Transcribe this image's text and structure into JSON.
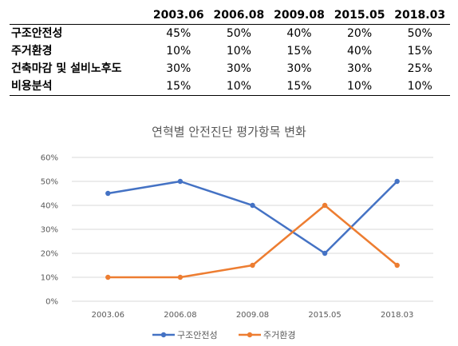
{
  "table": {
    "columns": [
      "2003.06",
      "2006.08",
      "2009.08",
      "2015.05",
      "2018.03"
    ],
    "rows": [
      {
        "label": "구조안전성",
        "values": [
          "45%",
          "50%",
          "40%",
          "20%",
          "50%"
        ]
      },
      {
        "label": "주거환경",
        "values": [
          "10%",
          "10%",
          "15%",
          "40%",
          "15%"
        ]
      },
      {
        "label": "건축마감 및 설비노후도",
        "values": [
          "30%",
          "30%",
          "30%",
          "30%",
          "25%"
        ]
      },
      {
        "label": "비용분석",
        "values": [
          "15%",
          "10%",
          "15%",
          "10%",
          "10%"
        ]
      }
    ]
  },
  "chart_data": {
    "type": "line",
    "title": "연혁별 안전진단 평가항목 변화",
    "categories": [
      "2003.06",
      "2006.08",
      "2009.08",
      "2015.05",
      "2018.03"
    ],
    "series": [
      {
        "name": "구조안전성",
        "values": [
          45,
          50,
          40,
          20,
          50
        ],
        "color": "#4472C4"
      },
      {
        "name": "주거환경",
        "values": [
          10,
          10,
          15,
          40,
          15
        ],
        "color": "#ED7D31"
      }
    ],
    "ylim": [
      0,
      60
    ],
    "yticks": [
      "0%",
      "10%",
      "20%",
      "30%",
      "40%",
      "50%",
      "60%"
    ],
    "grid": true,
    "legend": "bottom"
  }
}
